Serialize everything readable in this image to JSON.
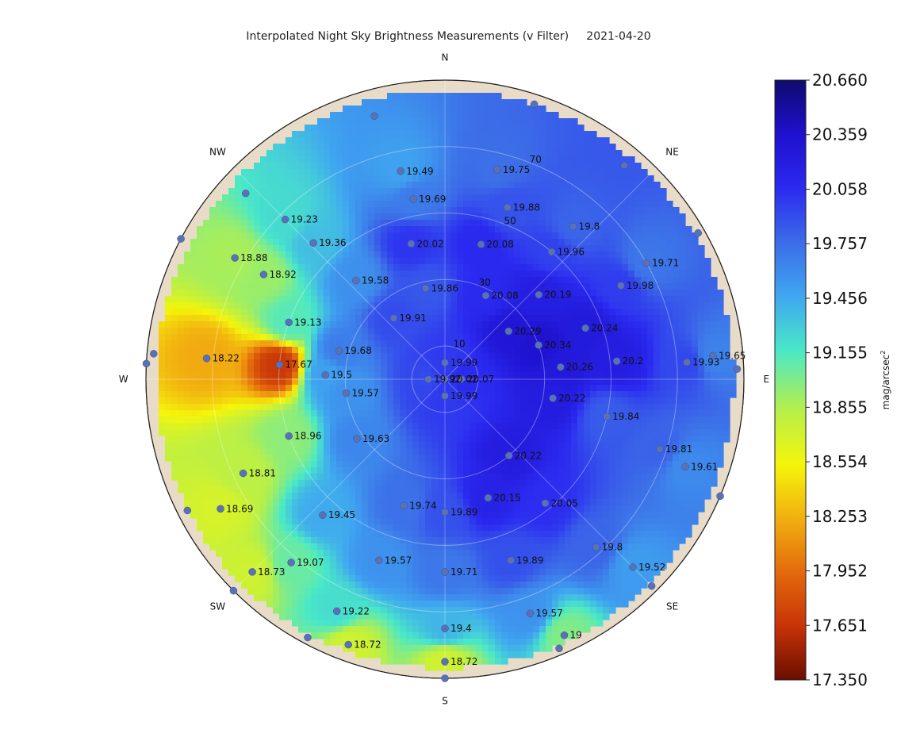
{
  "title": "Interpolated Night Sky Brightness Measurements (v Filter)     2021-04-20",
  "chart_data": {
    "type": "scatter",
    "title": "Interpolated Night Sky Brightness Measurements (v Filter)",
    "date": "2021-04-20",
    "projection": "polar",
    "directions": [
      "N",
      "NE",
      "E",
      "SE",
      "S",
      "SW",
      "W",
      "NW"
    ],
    "ring_labels": [
      "10",
      "30",
      "50",
      "70"
    ],
    "colorbar": {
      "min": 17.35,
      "max": 20.66,
      "ticks": [
        "20.660",
        "20.359",
        "20.058",
        "19.757",
        "19.456",
        "19.155",
        "18.855",
        "18.554",
        "18.253",
        "17.952",
        "17.651",
        "17.350"
      ],
      "label": "mag/arcsec",
      "label_sup": "2",
      "colormap": "jet-reversed"
    },
    "points": [
      {
        "az": 0,
        "zen": 0,
        "value": 20.02
      },
      {
        "az": 0,
        "zen": 5,
        "value": 19.99
      },
      {
        "az": 270,
        "zen": 5,
        "value": 19.92
      },
      {
        "az": 90,
        "zen": 5,
        "value": 20.07
      },
      {
        "az": 180,
        "zen": 5,
        "value": 19.99
      },
      {
        "az": 348,
        "zen": 64,
        "value": 19.49
      },
      {
        "az": 14,
        "zen": 65,
        "value": 19.75
      },
      {
        "az": 350,
        "zen": 55,
        "value": 19.69
      },
      {
        "az": 20,
        "zen": 55,
        "value": 19.88
      },
      {
        "az": 40,
        "zen": 60,
        "value": 19.8
      },
      {
        "az": 40,
        "zen": 50,
        "value": 19.96
      },
      {
        "az": 346,
        "zen": 42,
        "value": 20.02
      },
      {
        "az": 15,
        "zen": 42,
        "value": 20.08
      },
      {
        "az": 348,
        "zen": 28,
        "value": 19.86
      },
      {
        "az": 26,
        "zen": 28,
        "value": 20.08
      },
      {
        "az": 48,
        "zen": 38,
        "value": 20.19
      },
      {
        "az": 60,
        "zen": 70,
        "value": 19.71
      },
      {
        "az": 62,
        "zen": 60,
        "value": 19.98
      },
      {
        "az": 315,
        "zen": 68,
        "value": 19.23
      },
      {
        "az": 316,
        "zen": 57,
        "value": 19.36
      },
      {
        "az": 318,
        "zen": 40,
        "value": 19.58
      },
      {
        "az": 320,
        "zen": 24,
        "value": 19.91
      },
      {
        "az": 53,
        "zen": 24,
        "value": 20.29
      },
      {
        "az": 70,
        "zen": 45,
        "value": 20.24
      },
      {
        "az": 70,
        "zen": 30,
        "value": 20.34
      },
      {
        "az": 300,
        "zen": 73,
        "value": 18.88
      },
      {
        "az": 300,
        "zen": 63,
        "value": 18.92
      },
      {
        "az": 290,
        "zen": 50,
        "value": 19.13
      },
      {
        "az": 285,
        "zen": 33,
        "value": 19.68
      },
      {
        "az": 86,
        "zen": 73,
        "value": 19.93
      },
      {
        "az": 85,
        "zen": 81,
        "value": 19.65
      },
      {
        "az": 84,
        "zen": 52,
        "value": 20.2
      },
      {
        "az": 84,
        "zen": 35,
        "value": 20.26
      },
      {
        "az": 275,
        "zen": 72,
        "value": 18.22
      },
      {
        "az": 275,
        "zen": 50,
        "value": 17.67
      },
      {
        "az": 272,
        "zen": 36,
        "value": 19.5
      },
      {
        "az": 262,
        "zen": 30,
        "value": 19.57
      },
      {
        "az": 103,
        "zen": 50,
        "value": 19.84
      },
      {
        "az": 100,
        "zen": 33,
        "value": 20.22
      },
      {
        "az": 108,
        "zen": 68,
        "value": 19.81
      },
      {
        "az": 110,
        "zen": 77,
        "value": 19.61
      },
      {
        "az": 250,
        "zen": 50,
        "value": 18.96
      },
      {
        "az": 245,
        "zen": 67,
        "value": 18.81
      },
      {
        "az": 240,
        "zen": 78,
        "value": 18.69
      },
      {
        "az": 236,
        "zen": 32,
        "value": 19.63
      },
      {
        "az": 140,
        "zen": 30,
        "value": 20.22
      },
      {
        "az": 160,
        "zen": 38,
        "value": 20.15
      },
      {
        "az": 141,
        "zen": 48,
        "value": 20.05
      },
      {
        "az": 222,
        "zen": 55,
        "value": 19.45
      },
      {
        "az": 198,
        "zen": 40,
        "value": 19.74
      },
      {
        "az": 180,
        "zen": 40,
        "value": 19.89
      },
      {
        "az": 220,
        "zen": 72,
        "value": 19.07
      },
      {
        "az": 225,
        "zen": 82,
        "value": 18.73
      },
      {
        "az": 200,
        "zen": 58,
        "value": 19.57
      },
      {
        "az": 180,
        "zen": 58,
        "value": 19.71
      },
      {
        "az": 160,
        "zen": 58,
        "value": 19.89
      },
      {
        "az": 138,
        "zen": 68,
        "value": 19.8
      },
      {
        "az": 135,
        "zen": 80,
        "value": 19.52
      },
      {
        "az": 205,
        "zen": 77,
        "value": 19.22
      },
      {
        "az": 180,
        "zen": 75,
        "value": 19.4
      },
      {
        "az": 160,
        "zen": 75,
        "value": 19.57
      },
      {
        "az": 155,
        "zen": 85,
        "value": 19.0
      },
      {
        "az": 200,
        "zen": 85,
        "value": 18.72
      },
      {
        "az": 180,
        "zen": 85,
        "value": 18.72
      }
    ],
    "unlabeled_points": [
      {
        "az": 345,
        "zen": 82
      },
      {
        "az": 18,
        "zen": 87
      },
      {
        "az": 40,
        "zen": 84
      },
      {
        "az": 313,
        "zen": 82
      },
      {
        "az": 298,
        "zen": 90
      },
      {
        "az": 275,
        "zen": 88
      },
      {
        "az": 273,
        "zen": 90
      },
      {
        "az": 60,
        "zen": 88
      },
      {
        "az": 88,
        "zen": 88
      },
      {
        "az": 243,
        "zen": 87
      },
      {
        "az": 113,
        "zen": 90
      },
      {
        "az": 225,
        "zen": 90
      },
      {
        "az": 135,
        "zen": 88
      },
      {
        "az": 208,
        "zen": 88
      },
      {
        "az": 180,
        "zen": 90
      },
      {
        "az": 157,
        "zen": 88
      }
    ]
  }
}
